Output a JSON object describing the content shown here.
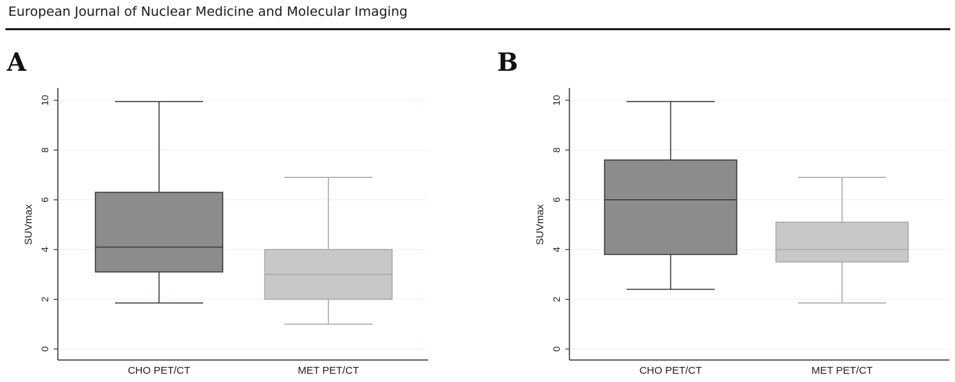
{
  "header": {
    "journal": "European Journal of Nuclear Medicine and Molecular Imaging"
  },
  "colors": {
    "cho_box": "#8c8c8c",
    "met_box": "#c8c8c8",
    "cho_line": "#3a3a3a",
    "met_line": "#a8a8a8",
    "grid": "#e9f0f2",
    "axis": "#333333"
  },
  "chart_data": [
    {
      "panel": "A",
      "type": "box",
      "ylabel": "SUVmax",
      "ylim": [
        0,
        10
      ],
      "yticks": [
        0,
        2,
        4,
        6,
        8,
        10
      ],
      "grid": true,
      "categories": [
        "CHO PET/CT",
        "MET PET/CT"
      ],
      "boxes": [
        {
          "category": "CHO PET/CT",
          "min": 1.85,
          "q1": 3.1,
          "median": 4.1,
          "q3": 6.3,
          "max": 9.95
        },
        {
          "category": "MET PET/CT",
          "min": 1.0,
          "q1": 2.0,
          "median": 3.0,
          "q3": 4.0,
          "max": 6.9
        }
      ]
    },
    {
      "panel": "B",
      "type": "box",
      "ylabel": "SUVmax",
      "ylim": [
        0,
        10
      ],
      "yticks": [
        0,
        2,
        4,
        6,
        8,
        10
      ],
      "grid": true,
      "categories": [
        "CHO PET/CT",
        "MET PET/CT"
      ],
      "boxes": [
        {
          "category": "CHO PET/CT",
          "min": 2.4,
          "q1": 3.8,
          "median": 6.0,
          "q3": 7.6,
          "max": 9.95
        },
        {
          "category": "MET PET/CT",
          "min": 1.85,
          "q1": 3.5,
          "median": 4.0,
          "q3": 5.1,
          "max": 6.9
        }
      ]
    }
  ]
}
